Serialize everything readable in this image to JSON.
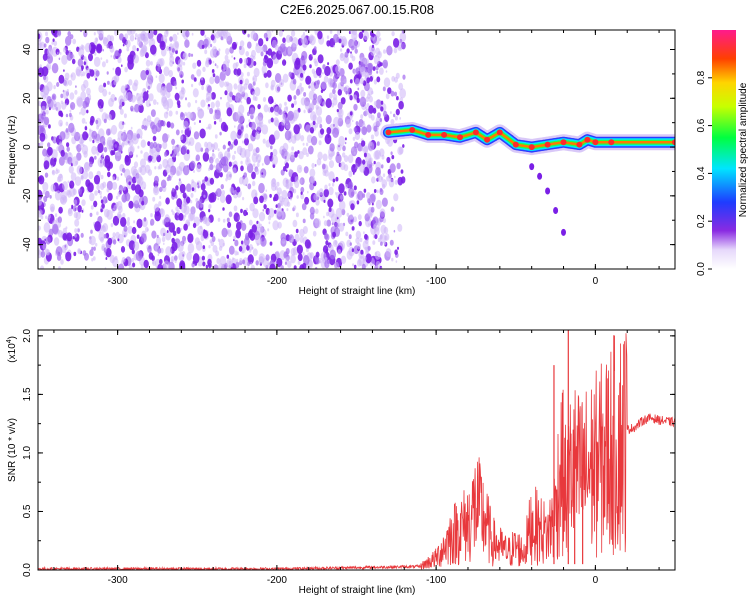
{
  "figure": {
    "title": "C2E6.2025.067.00.15.R08"
  },
  "chart_data": [
    {
      "type": "heatmap",
      "xlabel": "Height of straight line (km)",
      "ylabel": "Frequency (Hz)",
      "xlim": [
        -350,
        50
      ],
      "ylim": [
        -50,
        48
      ],
      "x_ticks": [
        "-300",
        "-200",
        "-100",
        "0"
      ],
      "y_ticks": [
        "-40",
        "-20",
        "0",
        "20",
        "40"
      ],
      "colorbar": {
        "label": "Normalized spectral amplitude",
        "range": [
          0,
          1
        ],
        "ticks": [
          "0.0",
          "0.2",
          "0.4",
          "0.6",
          "0.8"
        ],
        "colormap": "rainbow (white-violet-blue-cyan-green-yellow-red-magenta)"
      },
      "noise_region_x": [
        -350,
        -120
      ],
      "noise_color": "#7b22e8",
      "ridge": {
        "x": [
          -130,
          -115,
          -105,
          -95,
          -85,
          -75,
          -68,
          -60,
          -50,
          -40,
          -30,
          -20,
          -10,
          -5,
          0,
          10,
          50
        ],
        "y": [
          6,
          7,
          5,
          5,
          4,
          6,
          3,
          6,
          1,
          0,
          1,
          2,
          1,
          3,
          2,
          2,
          2
        ]
      },
      "secondary_branch": {
        "x": [
          -40,
          -35,
          -30,
          -25,
          -20
        ],
        "y": [
          -8,
          -12,
          -18,
          -26,
          -35
        ]
      },
      "grid": false
    },
    {
      "type": "line",
      "xlabel": "Height of straight line (km)",
      "ylabel": "SNR (10 * v/v)",
      "multiplier_label": "(x10",
      "multiplier_exp": "4",
      "xlim": [
        -350,
        50
      ],
      "ylim": [
        0,
        2.05
      ],
      "x_ticks": [
        "-300",
        "-200",
        "-100",
        "0"
      ],
      "y_ticks": [
        "0.0",
        "0.5",
        "1.0",
        "1.5",
        "2.0"
      ],
      "color": "#e8383c",
      "series": [
        {
          "x": [
            -350,
            -300,
            -250,
            -200,
            -150,
            -110,
            -100,
            -90,
            -80,
            -75,
            -70,
            -65,
            -60,
            -55,
            -50,
            -45,
            -40,
            -35,
            -30,
            -25,
            -22,
            -20,
            -18,
            -15,
            -10,
            -5,
            0,
            5,
            10,
            15,
            20,
            25,
            30,
            35,
            40,
            45,
            50
          ],
          "y": [
            0.01,
            0.01,
            0.01,
            0.01,
            0.02,
            0.03,
            0.1,
            0.3,
            0.4,
            0.55,
            0.45,
            0.25,
            0.2,
            0.15,
            0.2,
            0.15,
            0.4,
            0.35,
            0.3,
            0.5,
            0.9,
            0.8,
            0.6,
            0.9,
            0.8,
            0.85,
            0.9,
            0.95,
            1.05,
            1.1,
            1.2,
            1.22,
            1.28,
            1.3,
            1.28,
            1.27,
            1.26
          ]
        }
      ],
      "spikes": [
        {
          "x": -26,
          "y": 1.75
        },
        {
          "x": -17,
          "y": 2.05
        },
        {
          "x": -13,
          "y": 1.1
        },
        {
          "x": -8,
          "y": 0.9
        }
      ],
      "grid": false
    }
  ]
}
